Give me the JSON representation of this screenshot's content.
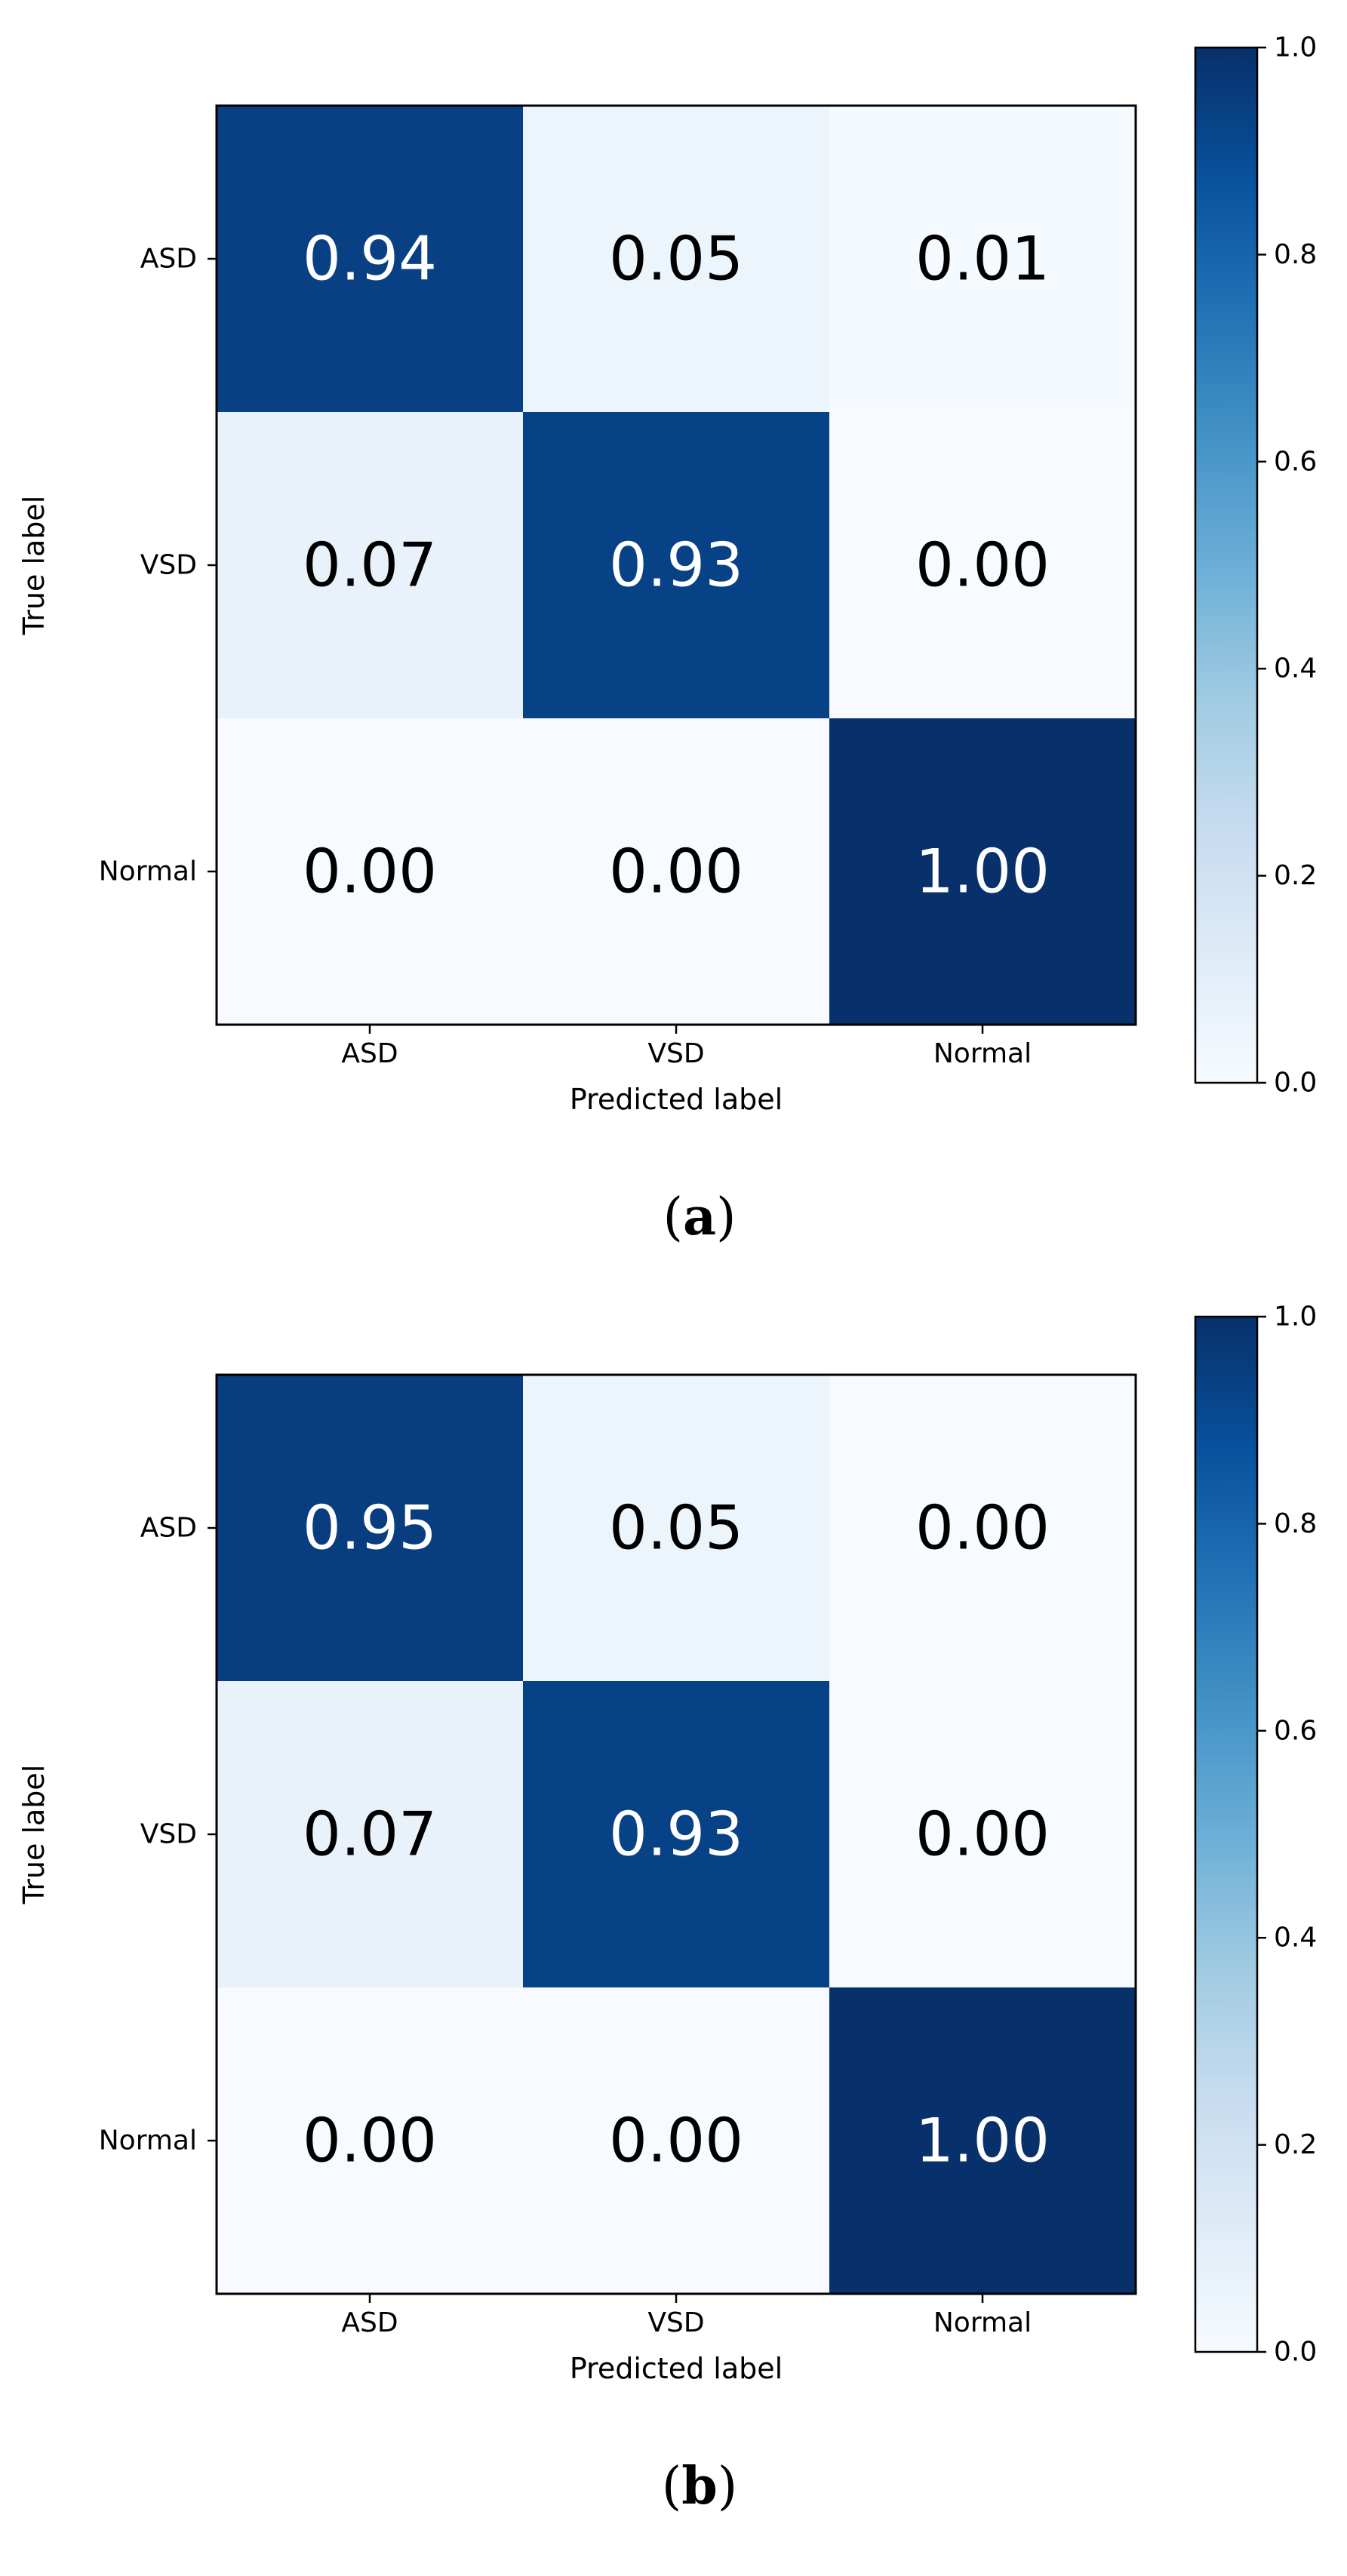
{
  "chart_data": [
    {
      "type": "heatmap",
      "panel": "a",
      "caption": {
        "open": "(",
        "letter": "a",
        "close": ")"
      },
      "row_labels": [
        "ASD",
        "VSD",
        "Normal"
      ],
      "col_labels": [
        "ASD",
        "VSD",
        "Normal"
      ],
      "values": [
        [
          0.94,
          0.05,
          0.01
        ],
        [
          0.07,
          0.93,
          0.0
        ],
        [
          0.0,
          0.0,
          1.0
        ]
      ],
      "xlabel": "Predicted label",
      "ylabel": "True label",
      "colorbar": {
        "min": 0.0,
        "max": 1.0,
        "ticks": [
          "0.0",
          "0.2",
          "0.4",
          "0.6",
          "0.8",
          "1.0"
        ],
        "colormap": "Blues"
      }
    },
    {
      "type": "heatmap",
      "panel": "b",
      "caption": {
        "open": "(",
        "letter": "b",
        "close": ")"
      },
      "row_labels": [
        "ASD",
        "VSD",
        "Normal"
      ],
      "col_labels": [
        "ASD",
        "VSD",
        "Normal"
      ],
      "values": [
        [
          0.95,
          0.05,
          0.0
        ],
        [
          0.07,
          0.93,
          0.0
        ],
        [
          0.0,
          0.0,
          1.0
        ]
      ],
      "xlabel": "Predicted label",
      "ylabel": "True label",
      "colorbar": {
        "min": 0.0,
        "max": 1.0,
        "ticks": [
          "0.0",
          "0.2",
          "0.4",
          "0.6",
          "0.8",
          "1.0"
        ],
        "colormap": "Blues"
      }
    }
  ]
}
